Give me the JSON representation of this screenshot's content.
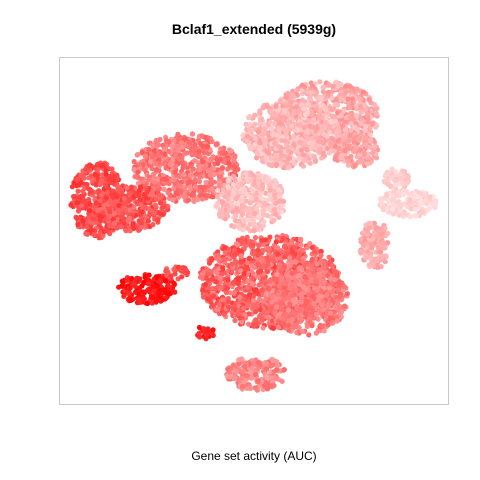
{
  "chart_data": {
    "type": "scatter",
    "title": "Bclaf1_extended (5939g)",
    "xlabel": "Gene set activity (AUC)",
    "ylabel": "",
    "grid": false,
    "legend": "none",
    "axis_ticks": "none",
    "xlim": [
      0,
      1
    ],
    "ylim": [
      0,
      1
    ],
    "color_scale": {
      "low": "#ffe8e8",
      "high": "#ff0000"
    },
    "clusters": [
      {
        "x": [
          0.55,
          0.82
        ],
        "y": [
          0.73,
          0.93
        ],
        "activity": [
          0.12,
          0.4
        ]
      },
      {
        "x": [
          0.47,
          0.72
        ],
        "y": [
          0.68,
          0.88
        ],
        "activity": [
          0.1,
          0.32
        ]
      },
      {
        "x": [
          0.7,
          0.82
        ],
        "y": [
          0.68,
          0.78
        ],
        "activity": [
          0.18,
          0.4
        ]
      },
      {
        "x": [
          0.19,
          0.46
        ],
        "y": [
          0.58,
          0.78
        ],
        "activity": [
          0.35,
          0.62
        ]
      },
      {
        "x": [
          0.03,
          0.17
        ],
        "y": [
          0.48,
          0.7
        ],
        "activity": [
          0.55,
          0.8
        ]
      },
      {
        "x": [
          0.09,
          0.28
        ],
        "y": [
          0.5,
          0.63
        ],
        "activity": [
          0.5,
          0.78
        ]
      },
      {
        "x": [
          0.4,
          0.58
        ],
        "y": [
          0.5,
          0.67
        ],
        "activity": [
          0.08,
          0.28
        ]
      },
      {
        "x": [
          0.82,
          0.97
        ],
        "y": [
          0.54,
          0.62
        ],
        "activity": [
          0.02,
          0.14
        ]
      },
      {
        "x": [
          0.83,
          0.9
        ],
        "y": [
          0.62,
          0.68
        ],
        "activity": [
          0.05,
          0.18
        ]
      },
      {
        "x": [
          0.77,
          0.85
        ],
        "y": [
          0.39,
          0.53
        ],
        "activity": [
          0.18,
          0.35
        ]
      },
      {
        "x": [
          0.36,
          0.72
        ],
        "y": [
          0.22,
          0.49
        ],
        "activity": [
          0.4,
          0.75
        ]
      },
      {
        "x": [
          0.53,
          0.74
        ],
        "y": [
          0.2,
          0.42
        ],
        "activity": [
          0.35,
          0.6
        ]
      },
      {
        "x": [
          0.15,
          0.3
        ],
        "y": [
          0.29,
          0.38
        ],
        "activity": [
          0.8,
          0.99
        ]
      },
      {
        "x": [
          0.27,
          0.33
        ],
        "y": [
          0.36,
          0.4
        ],
        "activity": [
          0.55,
          0.75
        ]
      },
      {
        "x": [
          0.35,
          0.4
        ],
        "y": [
          0.19,
          0.23
        ],
        "activity": [
          0.78,
          0.95
        ]
      },
      {
        "x": [
          0.43,
          0.58
        ],
        "y": [
          0.04,
          0.14
        ],
        "activity": [
          0.3,
          0.55
        ]
      }
    ]
  }
}
